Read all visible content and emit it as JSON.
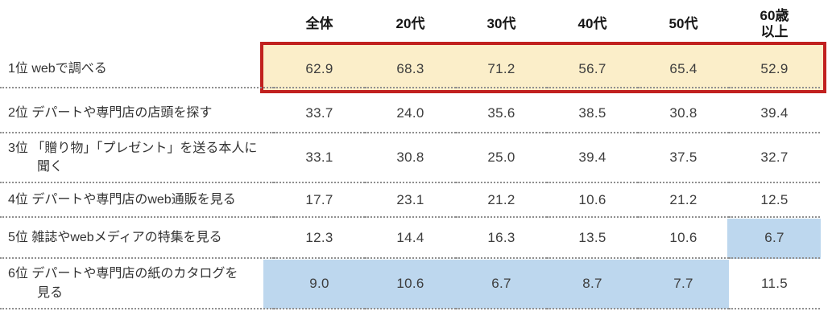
{
  "colors": {
    "rank1_fill": "#fbeec9",
    "rank1_border": "#c1211f",
    "low_value_fill": "#bdd7ee",
    "separator_dots": "#8f8f8f"
  },
  "chart_data": {
    "type": "table",
    "title": "",
    "columns": [
      "全体",
      "20代",
      "30代",
      "40代",
      "50代",
      "60歳\n以上"
    ],
    "rows": [
      {
        "label": "1位 webで調べる",
        "values": [
          "62.9",
          "68.3",
          "71.2",
          "56.7",
          "65.4",
          "52.9"
        ],
        "highlight": "rank1-yellow-with-red-box"
      },
      {
        "label": "2位 デパートや専門店の店頭を探す",
        "values": [
          "33.7",
          "24.0",
          "35.6",
          "38.5",
          "30.8",
          "39.4"
        ],
        "highlight": "none"
      },
      {
        "label": "3位 「贈り物」「プレゼント」を送る本人に\n聞く",
        "values": [
          "33.1",
          "30.8",
          "25.0",
          "39.4",
          "37.5",
          "32.7"
        ],
        "highlight": "none"
      },
      {
        "label": "4位 デパートや専門店のweb通販を見る",
        "values": [
          "17.7",
          "23.1",
          "21.2",
          "10.6",
          "21.2",
          "12.5"
        ],
        "highlight": "none"
      },
      {
        "label": "5位 雑誌やwebメディアの特集を見る",
        "values": [
          "12.3",
          "14.4",
          "16.3",
          "13.5",
          "10.6",
          "6.7"
        ],
        "highlight": "blue-cell-60plus"
      },
      {
        "label": "6位 デパートや専門店の紙のカタログを\n見る",
        "values": [
          "9.0",
          "10.6",
          "6.7",
          "8.7",
          "7.7",
          "11.5"
        ],
        "highlight": "blue-cells-overall-to-50s"
      }
    ],
    "layout_hints": {
      "row_separators": "dotted",
      "header_row": "bold, no separator",
      "legend": "none",
      "gridlines": "horizontal dotted only"
    }
  }
}
